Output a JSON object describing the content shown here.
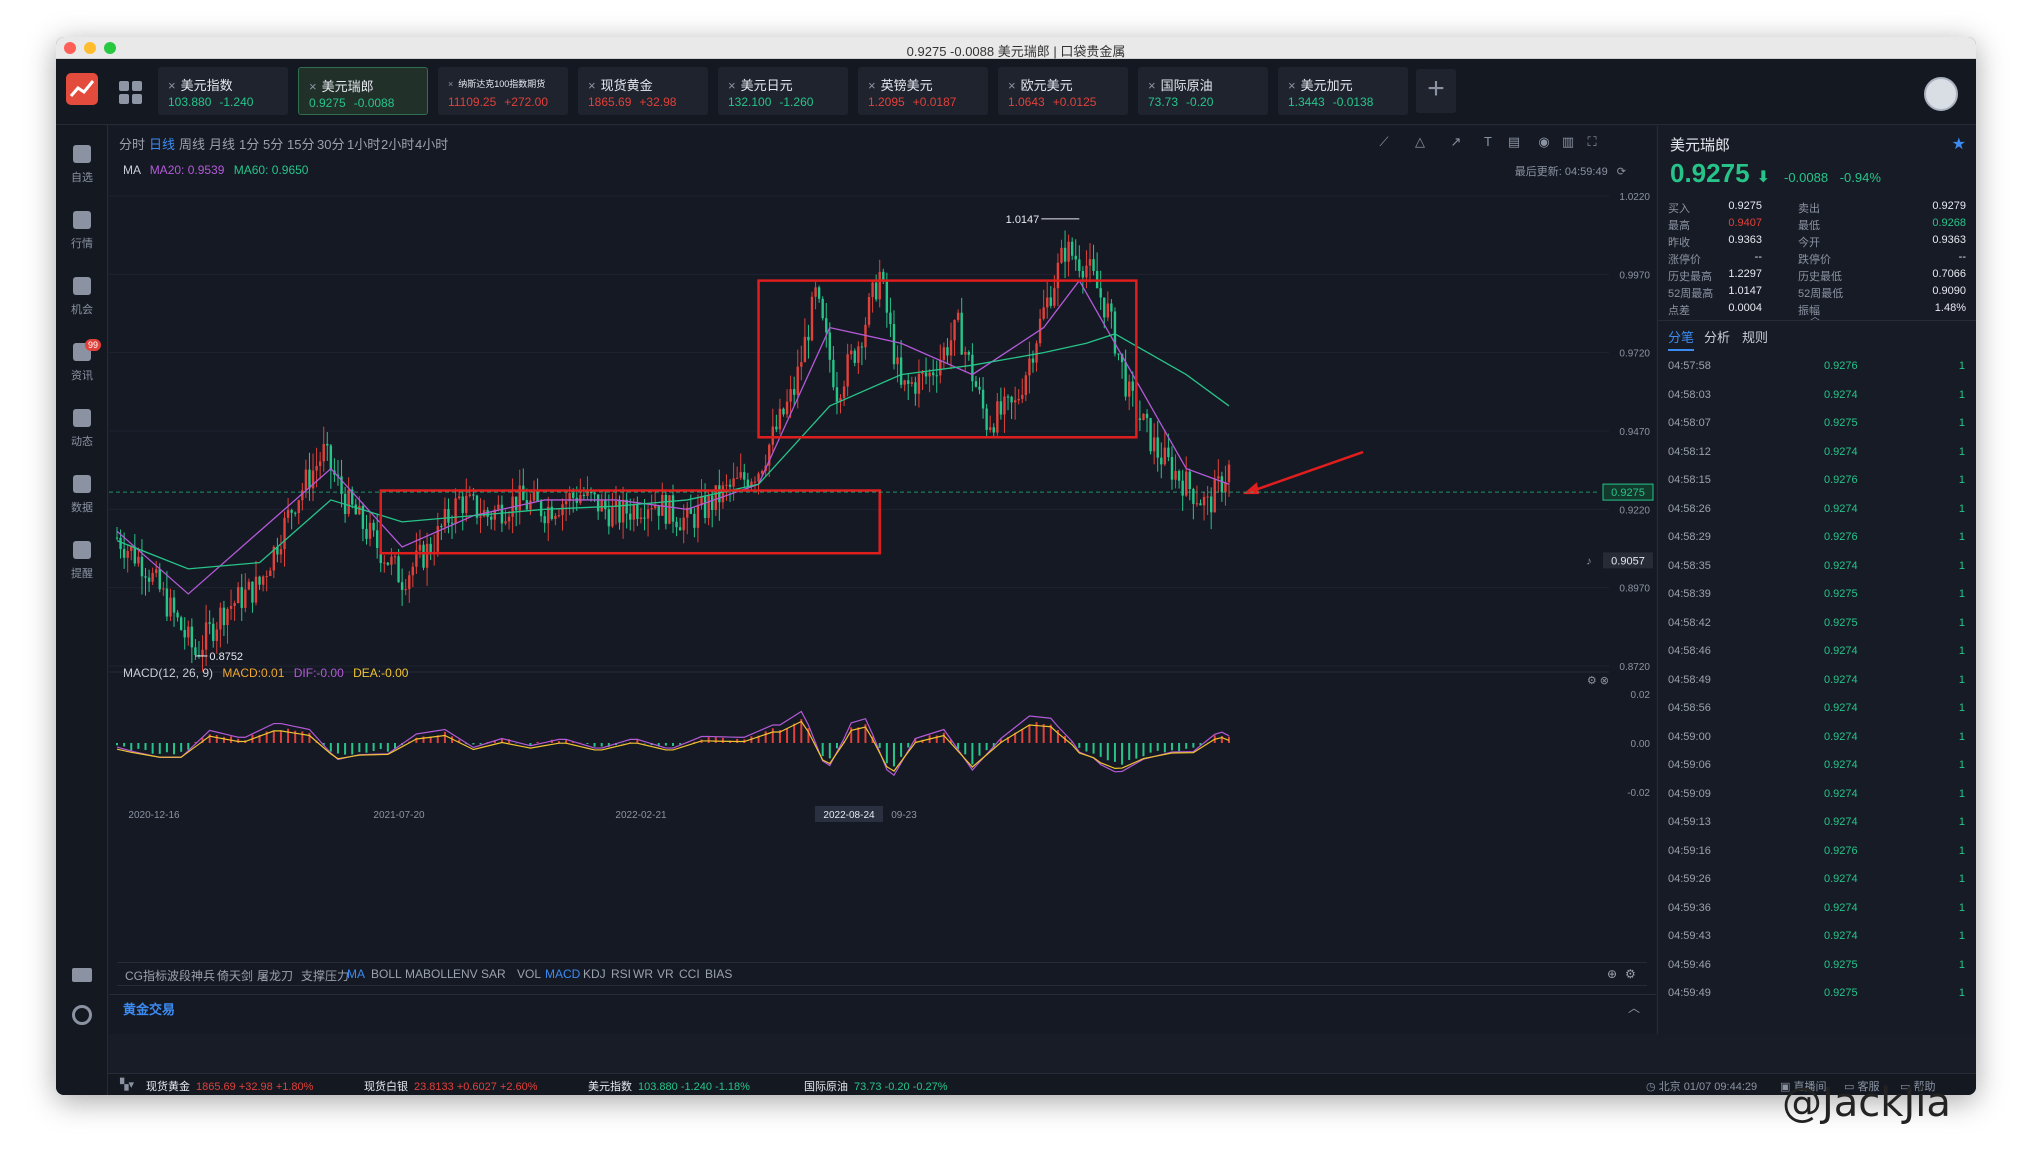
{
  "window": {
    "title": "0.9275 -0.0088 美元瑞郎 | 口袋贵金属"
  },
  "tabs": [
    {
      "name": "美元指数",
      "price": "103.880",
      "change": "-1.240",
      "active": false,
      "small": false
    },
    {
      "name": "美元瑞郎",
      "price": "0.9275",
      "change": "-0.0088",
      "active": true,
      "small": false
    },
    {
      "name": "纳斯达克100指数期货",
      "price": "11109.25",
      "change": "+272.00",
      "active": false,
      "small": true
    },
    {
      "name": "现货黄金",
      "price": "1865.69",
      "change": "+32.98",
      "active": false,
      "small": false
    },
    {
      "name": "美元日元",
      "price": "132.100",
      "change": "-1.260",
      "active": false,
      "small": false
    },
    {
      "name": "英镑美元",
      "price": "1.2095",
      "change": "+0.0187",
      "active": false,
      "small": false
    },
    {
      "name": "欧元美元",
      "price": "1.0643",
      "change": "+0.0125",
      "active": false,
      "small": false
    },
    {
      "name": "国际原油",
      "price": "73.73",
      "change": "-0.20",
      "active": false,
      "small": false
    },
    {
      "name": "美元加元",
      "price": "1.3443",
      "change": "-0.0138",
      "active": false,
      "small": false
    }
  ],
  "sidebar": {
    "items": [
      {
        "label": "自选",
        "icon": "bookmark-icon"
      },
      {
        "label": "行情",
        "icon": "bar-chart-icon"
      },
      {
        "label": "机会",
        "icon": "opportunity-icon"
      },
      {
        "label": "资讯",
        "icon": "news-icon",
        "badge": "99"
      },
      {
        "label": "动态",
        "icon": "planet-icon"
      },
      {
        "label": "数据",
        "icon": "data-chart-icon"
      },
      {
        "label": "提醒",
        "icon": "bell-icon"
      }
    ]
  },
  "periods": [
    "分时",
    "日线",
    "周线",
    "月线",
    "1分",
    "5分",
    "15分",
    "30分",
    "1小时",
    "2小时",
    "4小时"
  ],
  "active_period": "日线",
  "ma": {
    "label": "MA",
    "ma20": "MA20: 0.9539",
    "ma60": "MA60: 0.9650"
  },
  "last_update": "最后更新: 04:59:49",
  "macd": {
    "label": "MACD(12, 26, 9)",
    "macd": "MACD:0.01",
    "dif": "DIF:-0.00",
    "dea": "DEA:-0.00"
  },
  "indicators": [
    "CG指标",
    "波段神兵",
    "倚天剑",
    "屠龙刀",
    "支撑压力",
    "MA",
    "BOLL",
    "MABOLL",
    "ENV",
    "SAR",
    "VOL",
    "MACD",
    "KDJ",
    "RSI",
    "WR",
    "VR",
    "CCI",
    "BIAS"
  ],
  "active_indicators": [
    "MA",
    "MACD"
  ],
  "gold_trade": "黄金交易",
  "chart_data": {
    "type": "candlestick",
    "y_ticks": [
      "1.0220",
      "0.9970",
      "0.9720",
      "0.9470",
      "0.9220",
      "0.8970",
      "0.8720"
    ],
    "ylim": [
      0.872,
      1.022
    ],
    "x_ticks": [
      "2020-12-16",
      "2021-07-20",
      "2022-02-21",
      "2022-08-24",
      "09-23"
    ],
    "current_price": "0.9275",
    "alert_price": "0.9057",
    "annotations": {
      "high": "1.0147",
      "low": "0.8752"
    },
    "macd_y_ticks": [
      "0.02",
      "0.00",
      "-0.02"
    ],
    "close_path": [
      [
        0,
        0.913
      ],
      [
        8,
        0.904
      ],
      [
        16,
        0.888
      ],
      [
        22,
        0.876
      ],
      [
        30,
        0.89
      ],
      [
        40,
        0.898
      ],
      [
        50,
        0.925
      ],
      [
        58,
        0.94
      ],
      [
        64,
        0.925
      ],
      [
        72,
        0.912
      ],
      [
        80,
        0.9
      ],
      [
        88,
        0.91
      ],
      [
        96,
        0.925
      ],
      [
        104,
        0.92
      ],
      [
        112,
        0.925
      ],
      [
        120,
        0.922
      ],
      [
        130,
        0.927
      ],
      [
        140,
        0.92
      ],
      [
        150,
        0.925
      ],
      [
        160,
        0.918
      ],
      [
        170,
        0.927
      ],
      [
        180,
        0.935
      ],
      [
        190,
        0.96
      ],
      [
        196,
        0.99
      ],
      [
        202,
        0.96
      ],
      [
        208,
        0.975
      ],
      [
        214,
        0.997
      ],
      [
        220,
        0.96
      ],
      [
        228,
        0.965
      ],
      [
        236,
        0.98
      ],
      [
        244,
        0.95
      ],
      [
        252,
        0.955
      ],
      [
        260,
        0.985
      ],
      [
        266,
        1.005
      ],
      [
        272,
        1.0
      ],
      [
        278,
        0.985
      ],
      [
        284,
        0.958
      ],
      [
        292,
        0.94
      ],
      [
        300,
        0.93
      ],
      [
        306,
        0.923
      ],
      [
        312,
        0.935
      ]
    ],
    "ma_fast": [
      [
        0,
        0.915
      ],
      [
        20,
        0.895
      ],
      [
        40,
        0.915
      ],
      [
        60,
        0.935
      ],
      [
        80,
        0.91
      ],
      [
        100,
        0.92
      ],
      [
        120,
        0.925
      ],
      [
        140,
        0.925
      ],
      [
        160,
        0.922
      ],
      [
        180,
        0.93
      ],
      [
        200,
        0.98
      ],
      [
        220,
        0.975
      ],
      [
        240,
        0.965
      ],
      [
        260,
        0.98
      ],
      [
        270,
        0.995
      ],
      [
        280,
        0.975
      ],
      [
        300,
        0.935
      ],
      [
        312,
        0.93
      ]
    ],
    "ma_slow": [
      [
        0,
        0.912
      ],
      [
        20,
        0.903
      ],
      [
        40,
        0.905
      ],
      [
        60,
        0.925
      ],
      [
        80,
        0.918
      ],
      [
        100,
        0.92
      ],
      [
        120,
        0.922
      ],
      [
        140,
        0.923
      ],
      [
        160,
        0.925
      ],
      [
        180,
        0.93
      ],
      [
        200,
        0.955
      ],
      [
        220,
        0.965
      ],
      [
        240,
        0.968
      ],
      [
        260,
        0.972
      ],
      [
        272,
        0.975
      ],
      [
        280,
        0.978
      ],
      [
        300,
        0.965
      ],
      [
        312,
        0.955
      ]
    ],
    "boxes": [
      {
        "x_start": 180,
        "x_end": 286,
        "y_top": 0.995,
        "y_bottom": 0.945
      },
      {
        "x_start": 74,
        "x_end": 214,
        "y_top": 0.928,
        "y_bottom": 0.908
      }
    ]
  },
  "quote": {
    "name": "美元瑞郎",
    "price": "0.9275",
    "change": "-0.0088",
    "pct": "-0.94%",
    "stats": [
      {
        "k": "买入",
        "v": "0.9275",
        "k2": "卖出",
        "v2": "0.9279",
        "c": "",
        "c2": ""
      },
      {
        "k": "最高",
        "v": "0.9407",
        "k2": "最低",
        "v2": "0.9268",
        "c": "#e0413a",
        "c2": "#27c48a"
      },
      {
        "k": "昨收",
        "v": "0.9363",
        "k2": "今开",
        "v2": "0.9363",
        "c": "",
        "c2": ""
      },
      {
        "k": "涨停价",
        "v": "--",
        "k2": "跌停价",
        "v2": "--",
        "c": "",
        "c2": ""
      },
      {
        "k": "历史最高",
        "v": "1.2297",
        "k2": "历史最低",
        "v2": "0.7066",
        "c": "",
        "c2": ""
      },
      {
        "k": "52周最高",
        "v": "1.0147",
        "k2": "52周最低",
        "v2": "0.9090",
        "c": "",
        "c2": ""
      },
      {
        "k": "点差",
        "v": "0.0004",
        "k2": "振幅",
        "v2": "1.48%",
        "c": "",
        "c2": ""
      }
    ]
  },
  "panel_tabs": [
    "分笔",
    "分析",
    "规则"
  ],
  "ticks": [
    [
      "04:57:58",
      "0.9276",
      "1"
    ],
    [
      "04:58:03",
      "0.9274",
      "1"
    ],
    [
      "04:58:07",
      "0.9275",
      "1"
    ],
    [
      "04:58:12",
      "0.9274",
      "1"
    ],
    [
      "04:58:15",
      "0.9276",
      "1"
    ],
    [
      "04:58:26",
      "0.9274",
      "1"
    ],
    [
      "04:58:29",
      "0.9276",
      "1"
    ],
    [
      "04:58:35",
      "0.9274",
      "1"
    ],
    [
      "04:58:39",
      "0.9275",
      "1"
    ],
    [
      "04:58:42",
      "0.9275",
      "1"
    ],
    [
      "04:58:46",
      "0.9274",
      "1"
    ],
    [
      "04:58:49",
      "0.9274",
      "1"
    ],
    [
      "04:58:56",
      "0.9274",
      "1"
    ],
    [
      "04:59:00",
      "0.9274",
      "1"
    ],
    [
      "04:59:06",
      "0.9274",
      "1"
    ],
    [
      "04:59:09",
      "0.9274",
      "1"
    ],
    [
      "04:59:13",
      "0.9274",
      "1"
    ],
    [
      "04:59:16",
      "0.9276",
      "1"
    ],
    [
      "04:59:26",
      "0.9274",
      "1"
    ],
    [
      "04:59:36",
      "0.9274",
      "1"
    ],
    [
      "04:59:43",
      "0.9274",
      "1"
    ],
    [
      "04:59:46",
      "0.9275",
      "1"
    ],
    [
      "04:59:49",
      "0.9275",
      "1"
    ]
  ],
  "statusbar": {
    "items": [
      {
        "name": "现货黄金",
        "val": "1865.69 +32.98 +1.80%",
        "color": "#e0413a"
      },
      {
        "name": "现货白银",
        "val": "23.8133 +0.6027 +2.60%",
        "color": "#e0413a"
      },
      {
        "name": "美元指数",
        "val": "103.880 -1.240 -1.18%",
        "color": "#27c48a"
      },
      {
        "name": "国际原油",
        "val": "73.73 -0.20 -0.27%",
        "color": "#27c48a"
      }
    ],
    "clock": "北京 01/07 09:44:29",
    "live": "直播间",
    "service": "客服",
    "help": "帮助"
  },
  "colors": {
    "up": "#e0413a",
    "down": "#27c48a",
    "accent": "#3c8bf2",
    "ma20": "#b35ad8",
    "ma60": "#27c48a"
  },
  "watermark": "@JackJia"
}
